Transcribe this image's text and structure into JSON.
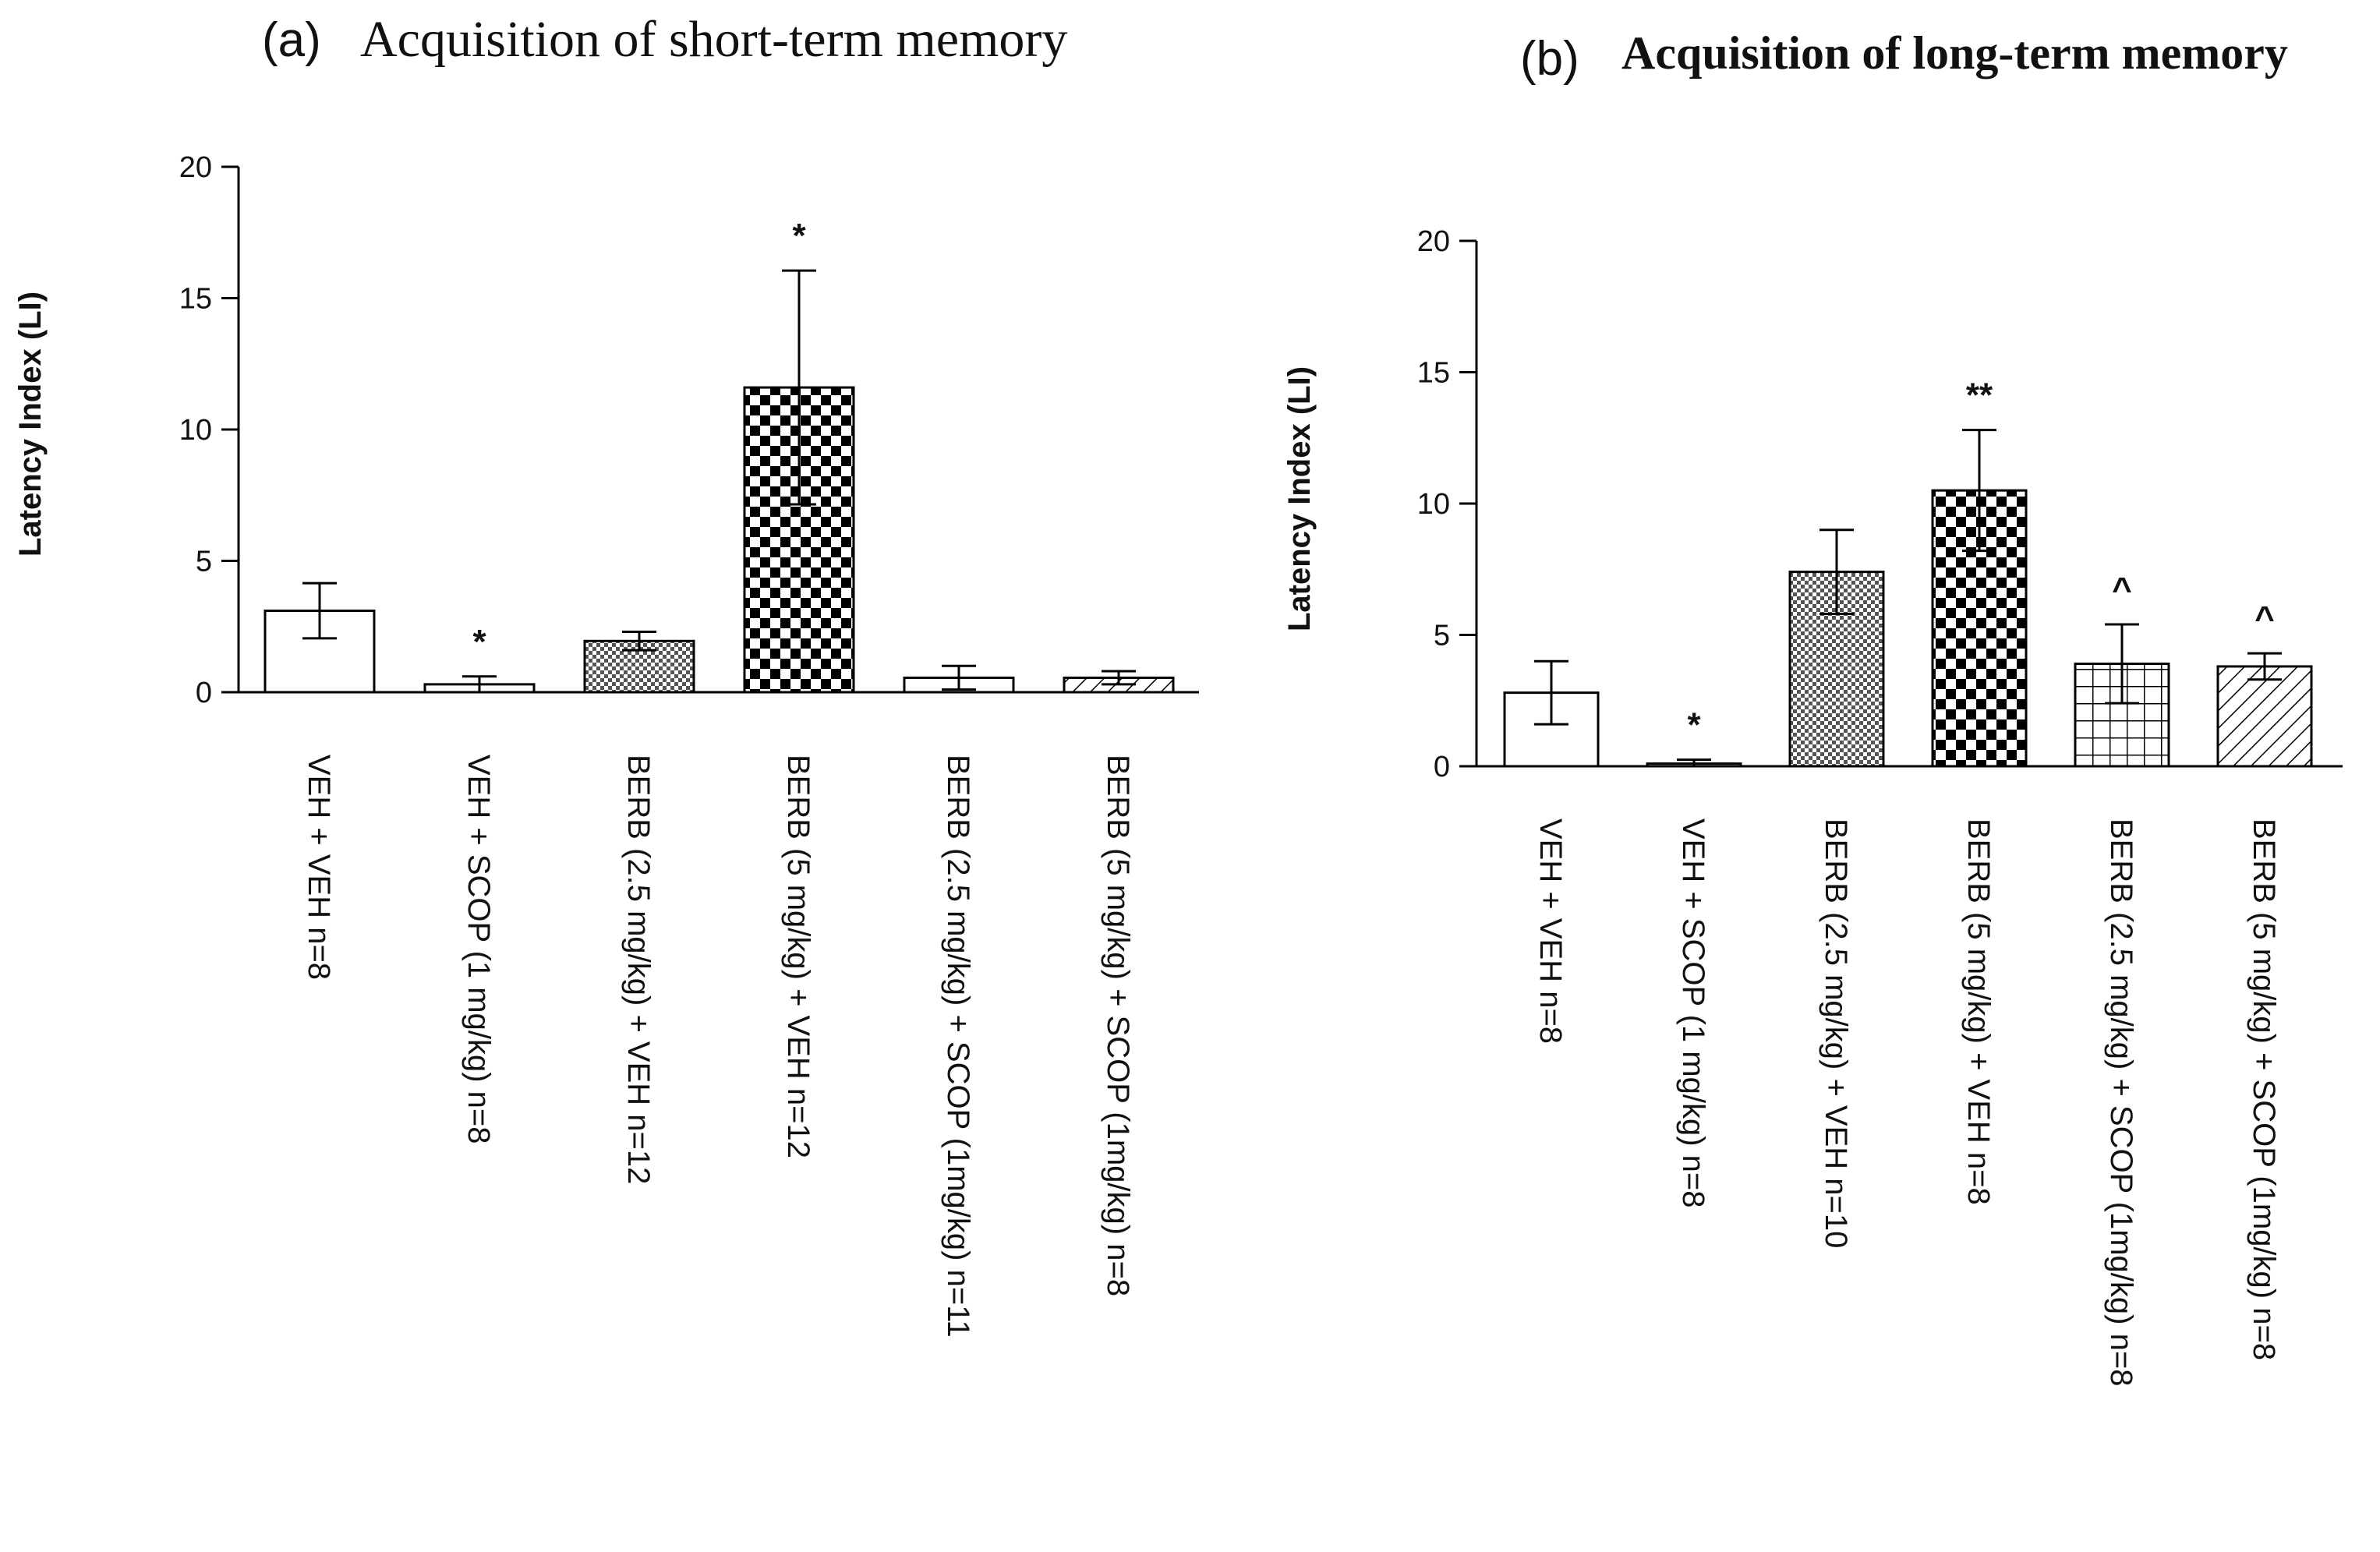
{
  "chart_data": [
    {
      "type": "bar",
      "panel_label": "(a)",
      "title": "Acquisition of short-term memory",
      "ylabel": "Latency Index (LI)",
      "xlabel": "",
      "ylim": [
        0,
        20
      ],
      "yticks": [
        "0",
        "5",
        "10",
        "15",
        "20"
      ],
      "grid": false,
      "categories": [
        "VEH + VEH  n=8",
        "VEH + SCOP (1 mg/kg)  n=8",
        "BERB (2.5 mg/kg) + VEH  n=12",
        "BERB (5 mg/kg) + VEH  n=12",
        "BERB (2.5 mg/kg) + SCOP (1mg/kg) n=11",
        "BERB (5 mg/kg) + SCOP (1mg/kg) n=8"
      ],
      "values": [
        3.1,
        0.3,
        1.95,
        11.6,
        0.55,
        0.55
      ],
      "errors": [
        1.05,
        0.3,
        0.35,
        4.45,
        0.45,
        0.25
      ],
      "significance": [
        "",
        "*",
        "",
        "*",
        "",
        ""
      ],
      "patterns": [
        "white",
        "white",
        "fine-grid",
        "checker-large",
        "white",
        "diagonal"
      ]
    },
    {
      "type": "bar",
      "panel_label": "(b)",
      "title": "Acquisition of long-term memory",
      "ylabel": "Latency Index (LI)",
      "xlabel": "",
      "ylim": [
        0,
        20
      ],
      "yticks": [
        "0",
        "5",
        "10",
        "15",
        "20"
      ],
      "grid": false,
      "categories": [
        "VEH + VEH  n=8",
        "VEH + SCOP (1 mg/kg)  n=8",
        "BERB (2.5 mg/kg) + VEH  n=10",
        "BERB (5 mg/kg) + VEH  n=8",
        "BERB (2.5 mg/kg) + SCOP (1mg/kg) n=8",
        "BERB (5 mg/kg) + SCOP (1mg/kg) n=8"
      ],
      "values": [
        2.8,
        0.1,
        7.4,
        10.5,
        3.9,
        3.8
      ],
      "errors": [
        1.2,
        0.15,
        1.6,
        2.3,
        1.5,
        0.5
      ],
      "significance": [
        "",
        "*",
        "",
        "**",
        "^",
        "^"
      ],
      "patterns": [
        "white",
        "white",
        "fine-grid",
        "checker-large",
        "square-grid",
        "diagonal"
      ]
    }
  ]
}
